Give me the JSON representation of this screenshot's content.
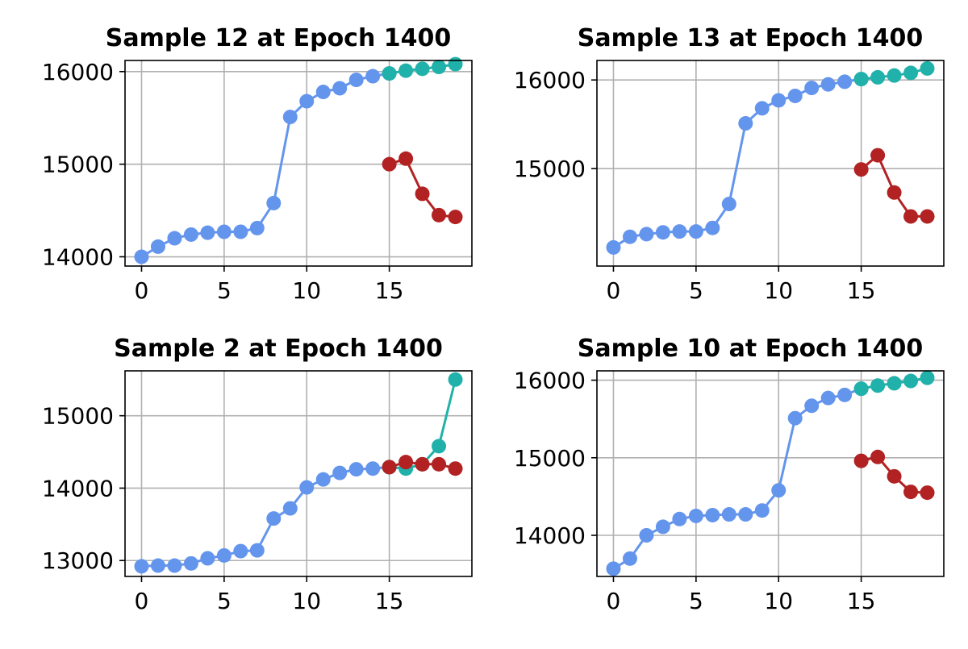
{
  "chart_data": [
    {
      "type": "line",
      "title": "Sample 12 at Epoch 1400",
      "xlim": [
        -1,
        20
      ],
      "ylim": [
        13900,
        16120
      ],
      "xticks": [
        0,
        5,
        10,
        15
      ],
      "yticks": [
        14000,
        15000,
        16000
      ],
      "grid": true,
      "series": [
        {
          "color": "#6495ed",
          "x": [
            0,
            1,
            2,
            3,
            4,
            5,
            6,
            7,
            8,
            9,
            10,
            11,
            12,
            13,
            14,
            15
          ],
          "values": [
            14000,
            14110,
            14200,
            14240,
            14260,
            14270,
            14270,
            14310,
            14580,
            15510,
            15680,
            15780,
            15820,
            15910,
            15950,
            15980
          ]
        },
        {
          "color": "#20b2aa",
          "x": [
            15,
            16,
            17,
            18,
            19
          ],
          "values": [
            15980,
            16010,
            16030,
            16050,
            16080
          ]
        },
        {
          "color": "#b22222",
          "x": [
            15,
            16,
            17,
            18,
            19
          ],
          "values": [
            15000,
            15060,
            14680,
            14450,
            14430
          ]
        }
      ]
    },
    {
      "type": "line",
      "title": "Sample 13 at Epoch 1400",
      "xlim": [
        -1,
        20
      ],
      "ylim": [
        13900,
        16220
      ],
      "xticks": [
        0,
        5,
        10,
        15
      ],
      "yticks": [
        15000,
        16000
      ],
      "grid": true,
      "series": [
        {
          "color": "#6495ed",
          "x": [
            0,
            1,
            2,
            3,
            4,
            5,
            6,
            7,
            8,
            9,
            10,
            11,
            12,
            13,
            14,
            15
          ],
          "values": [
            14110,
            14230,
            14260,
            14280,
            14290,
            14290,
            14330,
            14600,
            15510,
            15680,
            15770,
            15820,
            15910,
            15950,
            15980,
            16010
          ]
        },
        {
          "color": "#20b2aa",
          "x": [
            15,
            16,
            17,
            18,
            19
          ],
          "values": [
            16010,
            16030,
            16050,
            16080,
            16130
          ]
        },
        {
          "color": "#b22222",
          "x": [
            15,
            16,
            17,
            18,
            19
          ],
          "values": [
            14990,
            15150,
            14730,
            14460,
            14460
          ]
        }
      ]
    },
    {
      "type": "line",
      "title": "Sample 2 at Epoch 1400",
      "xlim": [
        -1,
        20
      ],
      "ylim": [
        12780,
        15620
      ],
      "xticks": [
        0,
        5,
        10,
        15
      ],
      "yticks": [
        13000,
        14000,
        15000
      ],
      "grid": true,
      "series": [
        {
          "color": "#6495ed",
          "x": [
            0,
            1,
            2,
            3,
            4,
            5,
            6,
            7,
            8,
            9,
            10,
            11,
            12,
            13,
            14,
            15
          ],
          "values": [
            12920,
            12930,
            12930,
            12960,
            13030,
            13070,
            13130,
            13140,
            13580,
            13720,
            14010,
            14120,
            14210,
            14260,
            14270,
            14290
          ]
        },
        {
          "color": "#20b2aa",
          "x": [
            15,
            16,
            17,
            18,
            19
          ],
          "values": [
            14290,
            14270,
            14330,
            14580,
            15500
          ]
        },
        {
          "color": "#b22222",
          "x": [
            15,
            16,
            17,
            18,
            19
          ],
          "values": [
            14290,
            14360,
            14330,
            14330,
            14270
          ]
        }
      ]
    },
    {
      "type": "line",
      "title": "Sample 10 at Epoch 1400",
      "xlim": [
        -1,
        20
      ],
      "ylim": [
        13470,
        16120
      ],
      "xticks": [
        0,
        5,
        10,
        15
      ],
      "yticks": [
        14000,
        15000,
        16000
      ],
      "grid": true,
      "series": [
        {
          "color": "#6495ed",
          "x": [
            0,
            1,
            2,
            3,
            4,
            5,
            6,
            7,
            8,
            9,
            10,
            11,
            12,
            13,
            14,
            15
          ],
          "values": [
            13570,
            13700,
            14000,
            14110,
            14210,
            14250,
            14260,
            14270,
            14270,
            14320,
            14580,
            15510,
            15670,
            15770,
            15810,
            15890
          ]
        },
        {
          "color": "#20b2aa",
          "x": [
            15,
            16,
            17,
            18,
            19
          ],
          "values": [
            15890,
            15930,
            15960,
            15990,
            16030
          ]
        },
        {
          "color": "#b22222",
          "x": [
            15,
            16,
            17,
            18,
            19
          ],
          "values": [
            14960,
            15010,
            14760,
            14560,
            14550
          ]
        }
      ]
    }
  ]
}
